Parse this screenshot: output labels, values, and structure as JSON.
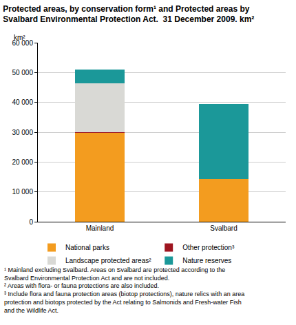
{
  "chart_data": {
    "type": "bar",
    "stacked": true,
    "title": [
      "Protected areas, by conservation form¹ and Protected areas by",
      "Svalbard Environmental Protection Act.  31 December 2009. km²"
    ],
    "ylabel": "km²",
    "categories": [
      "Mainland",
      "Svalbard"
    ],
    "series": [
      {
        "name": "National parks",
        "color": "#f39c1f",
        "values": [
          29700,
          14300
        ]
      },
      {
        "name": "Other protection³",
        "color": "#9e1520",
        "values": [
          400,
          0
        ]
      },
      {
        "name": "Landscape protected areas²",
        "color": "#d9d9d5",
        "values": [
          16200,
          0
        ]
      },
      {
        "name": "Nature reserves",
        "color": "#1b9899",
        "values": [
          4700,
          25100
        ]
      }
    ],
    "ylim": [
      0,
      60000
    ],
    "yticks": [
      0,
      {
        "value": 10000,
        "label": "10 000"
      },
      {
        "value": 20000,
        "label": "20 000"
      },
      {
        "value": 30000,
        "label": "30 000"
      },
      {
        "value": 40000,
        "label": "40 000"
      },
      {
        "value": 50000,
        "label": "50 000"
      },
      {
        "value": 60000,
        "label": "60 000"
      }
    ],
    "grid": true,
    "legend": "bottom",
    "notes": [
      [
        "¹ Mainland excluding Svalbard. Areas on Svalbard are protected according to the",
        "Svalbard Environmental Protection Act and are not included."
      ],
      [
        "² Areas with flora- or fauna protections are also included."
      ],
      [
        "³ Include flora and fauna protection areas (biotop protections), nature relics with an area",
        "protection and biotops protected by the Act relating to Salmonids and Fresh-water Fish",
        "and the Wildlife Act."
      ]
    ]
  }
}
